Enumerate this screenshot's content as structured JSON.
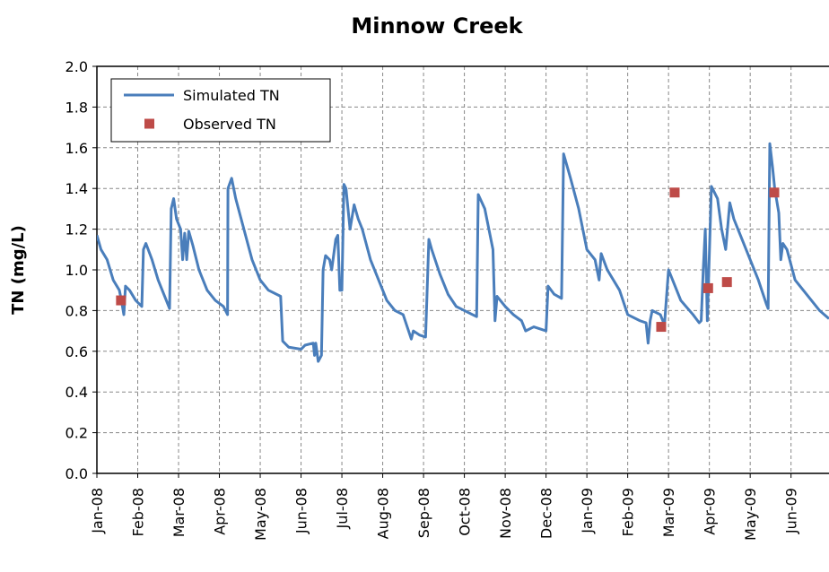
{
  "chart_data": {
    "type": "line",
    "title": "Minnow Creek",
    "y_label": "TN (mg/L)",
    "xlim": [
      0,
      17.93
    ],
    "ylim": [
      0,
      2.0
    ],
    "xticks": [
      {
        "value": 0,
        "label": "Jan-08"
      },
      {
        "value": 1,
        "label": "Feb-08"
      },
      {
        "value": 2,
        "label": "Mar-08"
      },
      {
        "value": 3,
        "label": "Apr-08"
      },
      {
        "value": 4,
        "label": "May-08"
      },
      {
        "value": 5,
        "label": "Jun-08"
      },
      {
        "value": 6,
        "label": "Jul-08"
      },
      {
        "value": 7,
        "label": "Aug-08"
      },
      {
        "value": 8,
        "label": "Sep-08"
      },
      {
        "value": 9,
        "label": "Oct-08"
      },
      {
        "value": 10,
        "label": "Nov-08"
      },
      {
        "value": 11,
        "label": "Dec-08"
      },
      {
        "value": 12,
        "label": "Jan-09"
      },
      {
        "value": 13,
        "label": "Feb-09"
      },
      {
        "value": 14,
        "label": "Mar-09"
      },
      {
        "value": 15,
        "label": "Apr-09"
      },
      {
        "value": 16,
        "label": "May-09"
      },
      {
        "value": 17,
        "label": "Jun-09"
      }
    ],
    "yticks": [
      {
        "value": 0,
        "label": "0.0"
      },
      {
        "value": 0.2,
        "label": "0.2"
      },
      {
        "value": 0.4,
        "label": "0.4"
      },
      {
        "value": 0.6,
        "label": "0.6"
      },
      {
        "value": 0.8,
        "label": "0.8"
      },
      {
        "value": 1.0,
        "label": "1.0"
      },
      {
        "value": 1.2,
        "label": "1.2"
      },
      {
        "value": 1.4,
        "label": "1.4"
      },
      {
        "value": 1.6,
        "label": "1.6"
      },
      {
        "value": 1.8,
        "label": "1.8"
      },
      {
        "value": 2.0,
        "label": "2.0"
      }
    ],
    "grid": true,
    "legend": "upper-left",
    "series": [
      {
        "name": "Simulated TN",
        "color": "#4a7ebb",
        "mark": "line",
        "x": [
          0,
          0.1,
          0.25,
          0.4,
          0.55,
          0.6,
          0.66,
          0.7,
          0.8,
          0.95,
          1.1,
          1.14,
          1.2,
          1.35,
          1.5,
          1.7,
          1.78,
          1.82,
          1.88,
          1.95,
          2.05,
          2.1,
          2.15,
          2.2,
          2.25,
          2.35,
          2.5,
          2.7,
          2.9,
          3.1,
          3.2,
          3.21,
          3.3,
          3.4,
          3.6,
          3.8,
          4.0,
          4.2,
          4.5,
          4.55,
          4.7,
          5.0,
          5.1,
          5.3,
          5.33,
          5.36,
          5.42,
          5.5,
          5.54,
          5.6,
          5.7,
          5.75,
          5.85,
          5.9,
          5.95,
          6.0,
          6.05,
          6.1,
          6.2,
          6.3,
          6.4,
          6.5,
          6.7,
          6.9,
          7.1,
          7.3,
          7.5,
          7.6,
          7.7,
          7.75,
          7.9,
          8.05,
          8.13,
          8.2,
          8.4,
          8.6,
          8.8,
          9.1,
          9.3,
          9.34,
          9.5,
          9.7,
          9.75,
          9.8,
          10.0,
          10.2,
          10.4,
          10.5,
          10.7,
          11.0,
          11.05,
          11.2,
          11.38,
          11.43,
          11.6,
          11.8,
          12.0,
          12.2,
          12.3,
          12.35,
          12.5,
          12.8,
          13.0,
          13.3,
          13.45,
          13.5,
          13.55,
          13.6,
          13.8,
          13.9,
          14.0,
          14.1,
          14.3,
          14.6,
          14.75,
          14.8,
          14.85,
          14.9,
          14.95,
          15.05,
          15.2,
          15.3,
          15.4,
          15.5,
          15.6,
          15.8,
          16.0,
          16.2,
          16.4,
          16.44,
          16.48,
          16.55,
          16.6,
          16.7,
          16.75,
          16.8,
          16.9,
          17.1,
          17.3,
          17.5,
          17.7,
          17.93
        ],
        "values": [
          1.17,
          1.1,
          1.05,
          0.95,
          0.9,
          0.85,
          0.78,
          0.92,
          0.9,
          0.85,
          0.82,
          1.1,
          1.13,
          1.05,
          0.95,
          0.85,
          0.81,
          1.3,
          1.35,
          1.25,
          1.2,
          1.05,
          1.18,
          1.05,
          1.19,
          1.12,
          1.0,
          0.9,
          0.85,
          0.82,
          0.78,
          1.4,
          1.45,
          1.35,
          1.2,
          1.05,
          0.95,
          0.9,
          0.87,
          0.65,
          0.62,
          0.61,
          0.63,
          0.64,
          0.58,
          0.64,
          0.55,
          0.58,
          1.0,
          1.07,
          1.05,
          1.0,
          1.15,
          1.17,
          0.9,
          0.9,
          1.42,
          1.4,
          1.2,
          1.32,
          1.25,
          1.2,
          1.05,
          0.95,
          0.85,
          0.8,
          0.78,
          0.72,
          0.66,
          0.7,
          0.68,
          0.67,
          1.15,
          1.1,
          0.98,
          0.88,
          0.82,
          0.79,
          0.77,
          1.37,
          1.3,
          1.1,
          0.75,
          0.87,
          0.82,
          0.78,
          0.75,
          0.7,
          0.72,
          0.7,
          0.92,
          0.88,
          0.86,
          1.57,
          1.45,
          1.3,
          1.1,
          1.05,
          0.95,
          1.08,
          1.0,
          0.9,
          0.78,
          0.75,
          0.74,
          0.64,
          0.75,
          0.8,
          0.78,
          0.73,
          1.0,
          0.95,
          0.85,
          0.78,
          0.74,
          0.75,
          1.0,
          1.2,
          0.75,
          1.41,
          1.35,
          1.2,
          1.1,
          1.33,
          1.25,
          1.15,
          1.05,
          0.95,
          0.83,
          0.81,
          1.62,
          1.5,
          1.4,
          1.28,
          1.05,
          1.13,
          1.1,
          0.95,
          0.9,
          0.85,
          0.8,
          0.76
        ]
      },
      {
        "name": "Observed TN",
        "color": "#be4b48",
        "mark": "square",
        "x": [
          0.59,
          13.82,
          14.15,
          14.97,
          15.43,
          16.59
        ],
        "values": [
          0.85,
          0.72,
          1.38,
          0.91,
          0.94,
          1.38
        ]
      }
    ]
  }
}
